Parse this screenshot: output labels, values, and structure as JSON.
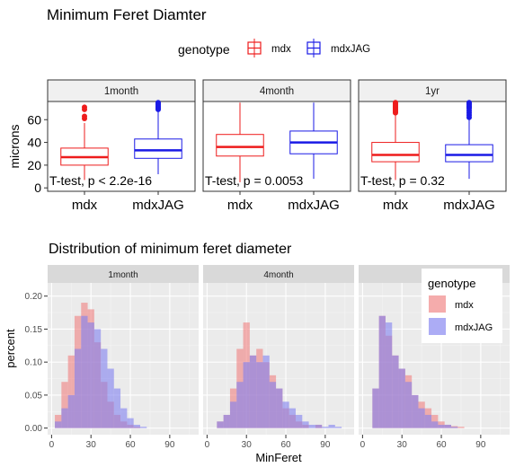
{
  "top": {
    "title": "Minimum Feret Diamter",
    "legend": {
      "title": "genotype",
      "entries": [
        {
          "label": "mdx",
          "color": "#ee1c1c"
        },
        {
          "label": "mdxJAG",
          "color": "#1a1ae6"
        }
      ]
    }
  },
  "bottom": {
    "title": "Distribution of minimum feret diameter",
    "legend": {
      "title": "genotype",
      "entries": [
        {
          "label": "mdx",
          "color": "#f08080"
        },
        {
          "label": "mdxJAG",
          "color": "#8080f0"
        }
      ]
    }
  },
  "chart_data": [
    {
      "type": "box",
      "title": "Minimum Feret Diamter",
      "ylabel": "microns",
      "xlabel": "",
      "ylim": [
        -3,
        76
      ],
      "yticks": [
        0,
        20,
        40,
        60
      ],
      "categories": [
        "mdx",
        "mdxJAG"
      ],
      "legend_position": "top",
      "panels": [
        {
          "label": "1month",
          "annotation": "T-test, p < 2.2e-16",
          "boxes": [
            {
              "group": "mdx",
              "whisker_low": 7,
              "q1": 20,
              "median": 27,
              "q3": 35,
              "whisker_high": 57,
              "outliers": [
                61,
                63,
                69,
                71
              ]
            },
            {
              "group": "mdxJAG",
              "whisker_low": 12,
              "q1": 26,
              "median": 33,
              "q3": 43,
              "whisker_high": 67,
              "outliers": [
                69,
                70,
                71,
                72,
                73,
                74,
                75
              ]
            }
          ]
        },
        {
          "label": "4month",
          "annotation": "T-test, p = 0.0053",
          "boxes": [
            {
              "group": "mdx",
              "whisker_low": 5,
              "q1": 28,
              "median": 36,
              "q3": 47,
              "whisker_high": 75,
              "outliers": []
            },
            {
              "group": "mdxJAG",
              "whisker_low": 8,
              "q1": 30,
              "median": 40,
              "q3": 50,
              "whisker_high": 75,
              "outliers": []
            }
          ]
        },
        {
          "label": "1yr",
          "annotation": "T-test, p = 0.32",
          "boxes": [
            {
              "group": "mdx",
              "whisker_low": 7,
              "q1": 23,
              "median": 29,
              "q3": 40,
              "whisker_high": 65,
              "outliers": [
                66,
                67,
                68,
                69,
                70,
                71,
                72,
                73,
                74,
                75
              ]
            },
            {
              "group": "mdxJAG",
              "whisker_low": 8,
              "q1": 23,
              "median": 29,
              "q3": 38,
              "whisker_high": 60,
              "outliers": [
                62,
                64,
                66,
                68,
                70,
                71,
                72,
                73,
                74,
                75
              ]
            }
          ]
        }
      ]
    },
    {
      "type": "histogram",
      "title": "Distribution of minimum feret diameter",
      "xlabel": "MinFeret",
      "ylabel": "percent",
      "xlim": [
        -3,
        112
      ],
      "ylim": [
        -0.01,
        0.22
      ],
      "xticks": [
        0,
        30,
        60,
        90
      ],
      "xtick_labels": [
        "0",
        "30",
        "60",
        "90"
      ],
      "yticks": [
        0.0,
        0.05,
        0.1,
        0.15,
        0.2
      ],
      "ytick_labels": [
        "0.00",
        "0.05",
        "0.10",
        "0.15",
        "0.20"
      ],
      "bin_width": 5,
      "legend_position": "right (inside)",
      "series_names": [
        "mdx",
        "mdxJAG"
      ],
      "panels": [
        {
          "label": "1month",
          "bins": [
            {
              "x": 5,
              "mdx": 0.02,
              "mdxJAG": 0.01
            },
            {
              "x": 10,
              "mdx": 0.07,
              "mdxJAG": 0.03
            },
            {
              "x": 15,
              "mdx": 0.11,
              "mdxJAG": 0.05
            },
            {
              "x": 20,
              "mdx": 0.17,
              "mdxJAG": 0.12
            },
            {
              "x": 25,
              "mdx": 0.19,
              "mdxJAG": 0.17
            },
            {
              "x": 30,
              "mdx": 0.18,
              "mdxJAG": 0.16
            },
            {
              "x": 35,
              "mdx": 0.13,
              "mdxJAG": 0.15
            },
            {
              "x": 40,
              "mdx": 0.07,
              "mdxJAG": 0.12
            },
            {
              "x": 45,
              "mdx": 0.04,
              "mdxJAG": 0.09
            },
            {
              "x": 50,
              "mdx": 0.02,
              "mdxJAG": 0.06
            },
            {
              "x": 55,
              "mdx": 0.01,
              "mdxJAG": 0.03
            },
            {
              "x": 60,
              "mdx": 0.005,
              "mdxJAG": 0.015
            },
            {
              "x": 65,
              "mdx": 0.002,
              "mdxJAG": 0.005
            },
            {
              "x": 70,
              "mdx": 0.0,
              "mdxJAG": 0.002
            }
          ]
        },
        {
          "label": "4month",
          "bins": [
            {
              "x": 10,
              "mdx": 0.01,
              "mdxJAG": 0.01
            },
            {
              "x": 15,
              "mdx": 0.02,
              "mdxJAG": 0.02
            },
            {
              "x": 20,
              "mdx": 0.06,
              "mdxJAG": 0.04
            },
            {
              "x": 25,
              "mdx": 0.12,
              "mdxJAG": 0.07
            },
            {
              "x": 30,
              "mdx": 0.16,
              "mdxJAG": 0.1
            },
            {
              "x": 35,
              "mdx": 0.11,
              "mdxJAG": 0.11
            },
            {
              "x": 40,
              "mdx": 0.12,
              "mdxJAG": 0.1
            },
            {
              "x": 45,
              "mdx": 0.1,
              "mdxJAG": 0.11
            },
            {
              "x": 50,
              "mdx": 0.08,
              "mdxJAG": 0.07
            },
            {
              "x": 55,
              "mdx": 0.06,
              "mdxJAG": 0.06
            },
            {
              "x": 60,
              "mdx": 0.03,
              "mdxJAG": 0.04
            },
            {
              "x": 65,
              "mdx": 0.02,
              "mdxJAG": 0.03
            },
            {
              "x": 70,
              "mdx": 0.01,
              "mdxJAG": 0.02
            },
            {
              "x": 75,
              "mdx": 0.005,
              "mdxJAG": 0.01
            },
            {
              "x": 80,
              "mdx": 0.0,
              "mdxJAG": 0.005
            },
            {
              "x": 85,
              "mdx": 0.005,
              "mdxJAG": 0.005
            },
            {
              "x": 90,
              "mdx": 0.0,
              "mdxJAG": 0.002
            },
            {
              "x": 95,
              "mdx": 0.0,
              "mdxJAG": 0.005
            },
            {
              "x": 100,
              "mdx": 0.0,
              "mdxJAG": 0.002
            }
          ]
        },
        {
          "label": "1yr",
          "bins": [
            {
              "x": 10,
              "mdx": 0.06,
              "mdxJAG": 0.06
            },
            {
              "x": 15,
              "mdx": 0.17,
              "mdxJAG": 0.17
            },
            {
              "x": 20,
              "mdx": 0.14,
              "mdxJAG": 0.16
            },
            {
              "x": 25,
              "mdx": 0.11,
              "mdxJAG": 0.11
            },
            {
              "x": 30,
              "mdx": 0.09,
              "mdxJAG": 0.09
            },
            {
              "x": 35,
              "mdx": 0.08,
              "mdxJAG": 0.07
            },
            {
              "x": 40,
              "mdx": 0.05,
              "mdxJAG": 0.05
            },
            {
              "x": 45,
              "mdx": 0.04,
              "mdxJAG": 0.03
            },
            {
              "x": 50,
              "mdx": 0.03,
              "mdxJAG": 0.02
            },
            {
              "x": 55,
              "mdx": 0.02,
              "mdxJAG": 0.01
            },
            {
              "x": 60,
              "mdx": 0.01,
              "mdxJAG": 0.005
            },
            {
              "x": 65,
              "mdx": 0.005,
              "mdxJAG": 0.005
            },
            {
              "x": 70,
              "mdx": 0.003,
              "mdxJAG": 0.002
            },
            {
              "x": 75,
              "mdx": 0.002,
              "mdxJAG": 0.0
            }
          ]
        }
      ]
    }
  ]
}
